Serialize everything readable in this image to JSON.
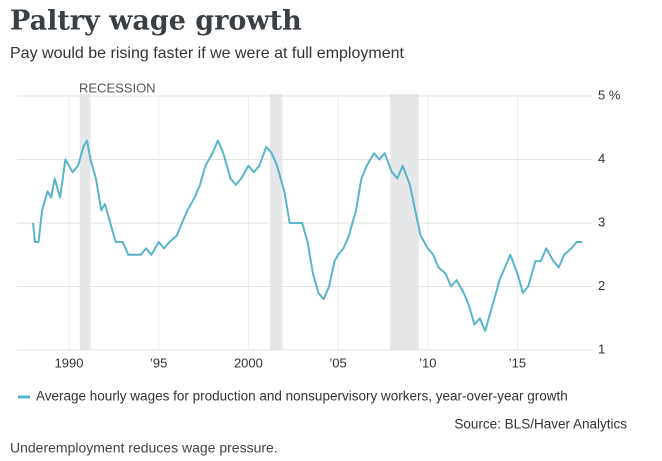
{
  "chart_data": {
    "type": "line",
    "title": "Paltry wage growth",
    "subtitle": "Pay would be rising faster if we were at full employment",
    "annotation": "RECESSION",
    "source": "Source: BLS/Haver Analytics",
    "caption": "Underemployment reduces wage pressure.",
    "recessions": [
      [
        1990.6,
        1991.2
      ],
      [
        2001.2,
        2001.9
      ],
      [
        2007.9,
        2009.5
      ]
    ],
    "x": [
      1988.0,
      1988.1,
      1988.3,
      1988.5,
      1988.8,
      1989.0,
      1989.2,
      1989.5,
      1989.8,
      1990.0,
      1990.2,
      1990.5,
      1990.8,
      1991.0,
      1991.2,
      1991.5,
      1991.8,
      1992.0,
      1992.3,
      1992.6,
      1993.0,
      1993.3,
      1993.6,
      1994.0,
      1994.3,
      1994.6,
      1995.0,
      1995.3,
      1995.6,
      1996.0,
      1996.3,
      1996.6,
      1997.0,
      1997.3,
      1997.6,
      1998.0,
      1998.3,
      1998.6,
      1999.0,
      1999.3,
      1999.6,
      2000.0,
      2000.3,
      2000.6,
      2001.0,
      2001.3,
      2001.6,
      2002.0,
      2002.3,
      2002.6,
      2003.0,
      2003.3,
      2003.6,
      2003.9,
      2004.2,
      2004.5,
      2004.8,
      2005.0,
      2005.3,
      2005.6,
      2006.0,
      2006.3,
      2006.6,
      2007.0,
      2007.3,
      2007.6,
      2008.0,
      2008.3,
      2008.6,
      2009.0,
      2009.3,
      2009.6,
      2010.0,
      2010.3,
      2010.6,
      2011.0,
      2011.3,
      2011.6,
      2012.0,
      2012.3,
      2012.6,
      2012.9,
      2013.2,
      2013.5,
      2013.8,
      2014.0,
      2014.3,
      2014.6,
      2015.0,
      2015.3,
      2015.6,
      2016.0,
      2016.3,
      2016.6,
      2017.0,
      2017.3,
      2017.6,
      2018.0,
      2018.3,
      2018.6
    ],
    "series": [
      {
        "name": "Average hourly wages for production and nonsupervisory workers, year-over-year growth",
        "color": "#5ab4cc",
        "values": [
          3.0,
          2.7,
          2.7,
          3.2,
          3.5,
          3.4,
          3.7,
          3.4,
          4.0,
          3.9,
          3.8,
          3.9,
          4.2,
          4.3,
          4.0,
          3.7,
          3.2,
          3.3,
          3.0,
          2.7,
          2.7,
          2.5,
          2.5,
          2.5,
          2.6,
          2.5,
          2.7,
          2.6,
          2.7,
          2.8,
          3.0,
          3.2,
          3.4,
          3.6,
          3.9,
          4.1,
          4.3,
          4.1,
          3.7,
          3.6,
          3.7,
          3.9,
          3.8,
          3.9,
          4.2,
          4.1,
          3.9,
          3.5,
          3.0,
          3.0,
          3.0,
          2.7,
          2.2,
          1.9,
          1.8,
          2.0,
          2.4,
          2.5,
          2.6,
          2.8,
          3.2,
          3.7,
          3.9,
          4.1,
          4.0,
          4.1,
          3.8,
          3.7,
          3.9,
          3.6,
          3.2,
          2.8,
          2.6,
          2.5,
          2.3,
          2.2,
          2.0,
          2.1,
          1.9,
          1.7,
          1.4,
          1.5,
          1.3,
          1.6,
          1.9,
          2.1,
          2.3,
          2.5,
          2.2,
          1.9,
          2.0,
          2.4,
          2.4,
          2.6,
          2.4,
          2.3,
          2.5,
          2.6,
          2.7,
          2.7
        ]
      }
    ],
    "xlim": [
      1987.1,
      2019.6
    ],
    "xticks": [
      1990,
      {
        "value": 1995,
        "label": "’95"
      },
      2000,
      {
        "value": 2005,
        "label": "’05"
      },
      {
        "value": 2010,
        "label": "’10"
      },
      {
        "value": 2015,
        "label": "’15"
      }
    ],
    "ylim": [
      1,
      5
    ],
    "yticks": [
      1,
      2,
      3,
      4,
      {
        "value": 5,
        "label": "5 %"
      }
    ],
    "grid": true
  }
}
